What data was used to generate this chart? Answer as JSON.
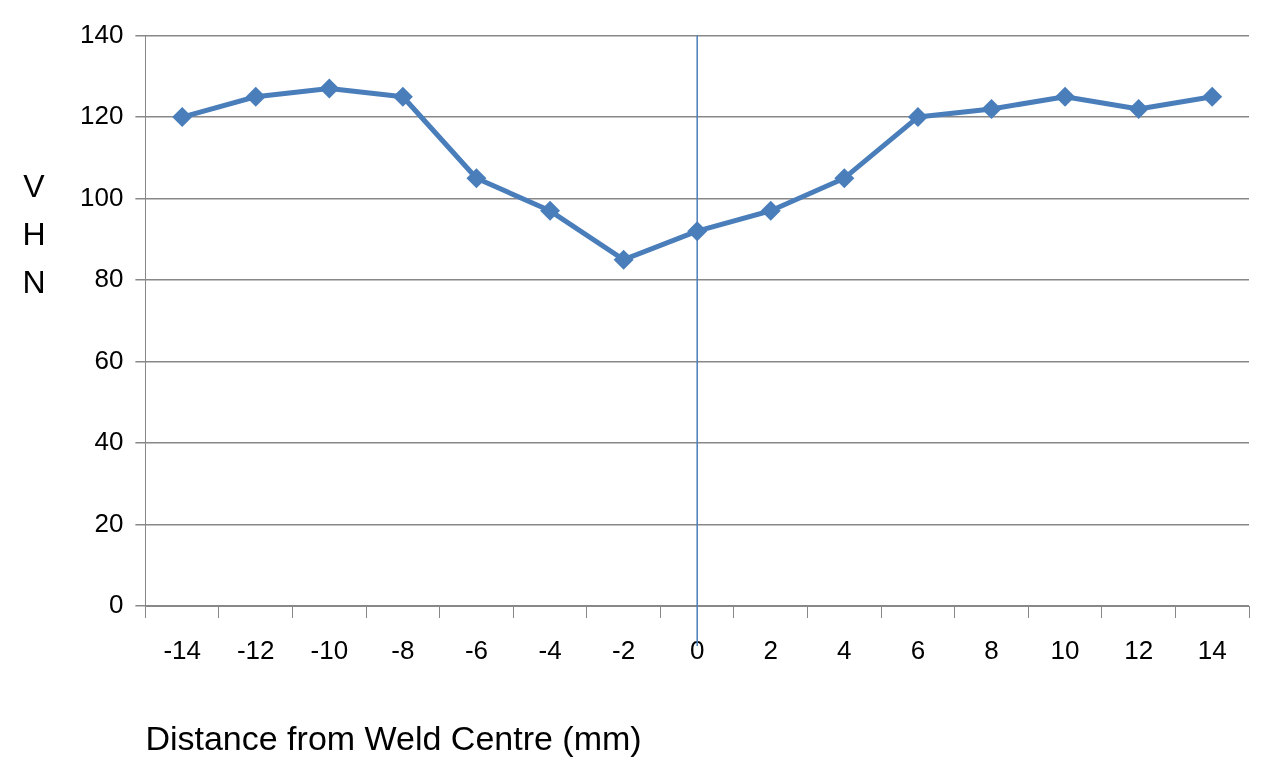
{
  "chart_data": {
    "type": "line",
    "xlabel": "Distance from Weld Centre (mm)",
    "ylabel": "VHN",
    "categories": [
      "-14",
      "-12",
      "-10",
      "-8",
      "-6",
      "-4",
      "-2",
      "0",
      "2",
      "4",
      "6",
      "8",
      "10",
      "12",
      "14"
    ],
    "series": [
      {
        "color": "#4a7ebb",
        "values": [
          120,
          125,
          127,
          125,
          105,
          97,
          85,
          92,
          97,
          105,
          120,
          122,
          125,
          122,
          125
        ]
      }
    ],
    "ylim": [
      0,
      140
    ],
    "yticks": [
      0,
      20,
      40,
      60,
      80,
      100,
      120,
      140
    ],
    "grid": "y",
    "legend": false,
    "marker": "diamond",
    "line_style": "solid",
    "ref_lines": [
      {
        "axis": "x",
        "value": "0",
        "color": "#4a7ebb"
      }
    ]
  }
}
